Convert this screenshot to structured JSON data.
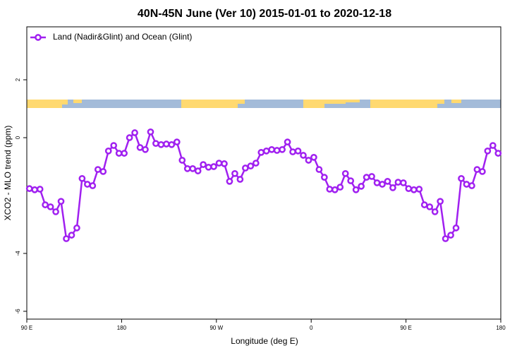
{
  "chart_data": {
    "type": "line",
    "title": "40N-45N June (Ver 10)   2015-01-01 to 2020-12-18",
    "xlabel": "Longitude (deg E)",
    "ylabel": "XCO2 - MLO trend (ppm)",
    "x": [
      92.5,
      97.5,
      102.5,
      107.5,
      112.5,
      117.5,
      122.5,
      127.5,
      132.5,
      137.5,
      142.5,
      147.5,
      152.5,
      157.5,
      162.5,
      167.5,
      172.5,
      177.5,
      182.5,
      187.5,
      192.5,
      197.5,
      202.5,
      207.5,
      212.5,
      217.5,
      222.5,
      227.5,
      232.5,
      237.5,
      242.5,
      247.5,
      252.5,
      257.5,
      262.5,
      267.5,
      272.5,
      277.5,
      282.5,
      287.5,
      292.5,
      297.5,
      302.5,
      307.5,
      312.5,
      317.5,
      322.5,
      327.5,
      332.5,
      337.5,
      342.5,
      347.5,
      352.5,
      357.5,
      362.5,
      367.5,
      372.5,
      377.5,
      382.5,
      387.5,
      392.5,
      397.5,
      402.5,
      407.5,
      412.5,
      417.5,
      422.5,
      427.5,
      432.5,
      437.5,
      442.5,
      447.5,
      452.5,
      457.5,
      462.5,
      467.5,
      472.5,
      477.5,
      482.5,
      487.5,
      492.5,
      497.5,
      502.5,
      507.5,
      512.5,
      517.5,
      522.5,
      527.5,
      532.5,
      537.5
    ],
    "series": [
      {
        "name": "Land (Nadir&Glint) and Ocean (Glint)",
        "color": "#a020f0",
        "values": [
          -1.76,
          -1.8,
          -1.78,
          -2.32,
          -2.39,
          -2.56,
          -2.2,
          -3.49,
          -3.37,
          -3.12,
          -1.41,
          -1.61,
          -1.66,
          -1.1,
          -1.17,
          -0.46,
          -0.27,
          -0.54,
          -0.54,
          0.0,
          0.17,
          -0.34,
          -0.41,
          0.2,
          -0.2,
          -0.24,
          -0.22,
          -0.24,
          -0.15,
          -0.78,
          -1.07,
          -1.07,
          -1.15,
          -0.93,
          -1.02,
          -1.0,
          -0.88,
          -0.9,
          -1.51,
          -1.24,
          -1.44,
          -1.05,
          -0.98,
          -0.88,
          -0.51,
          -0.46,
          -0.41,
          -0.44,
          -0.41,
          -0.15,
          -0.49,
          -0.46,
          -0.61,
          -0.78,
          -0.68,
          -1.1,
          -1.37,
          -1.78,
          -1.8,
          -1.71,
          -1.24,
          -1.49,
          -1.8,
          -1.68,
          -1.37,
          -1.34,
          -1.56,
          -1.61,
          -1.51,
          -1.73,
          -1.54,
          -1.56,
          -1.76,
          -1.8,
          -1.78,
          -2.32,
          -2.39,
          -2.56,
          -2.2,
          -3.49,
          -3.37,
          -3.12,
          -1.41,
          -1.61,
          -1.66,
          -1.1,
          -1.17,
          -0.46,
          -0.27,
          -0.54
        ]
      }
    ],
    "xlim": [
      90,
      540
    ],
    "xticks": [
      {
        "value": 90,
        "label": "90 E"
      },
      180,
      {
        "value": 270,
        "label": "90 W"
      },
      {
        "value": 360,
        "label": "0"
      },
      {
        "value": 450,
        "label": "90 E"
      },
      180.0001
    ],
    "ylim": [
      -6.27,
      3.83
    ],
    "yticks": [
      -6,
      -4,
      0,
      2
    ],
    "legend": "top-left"
  }
}
